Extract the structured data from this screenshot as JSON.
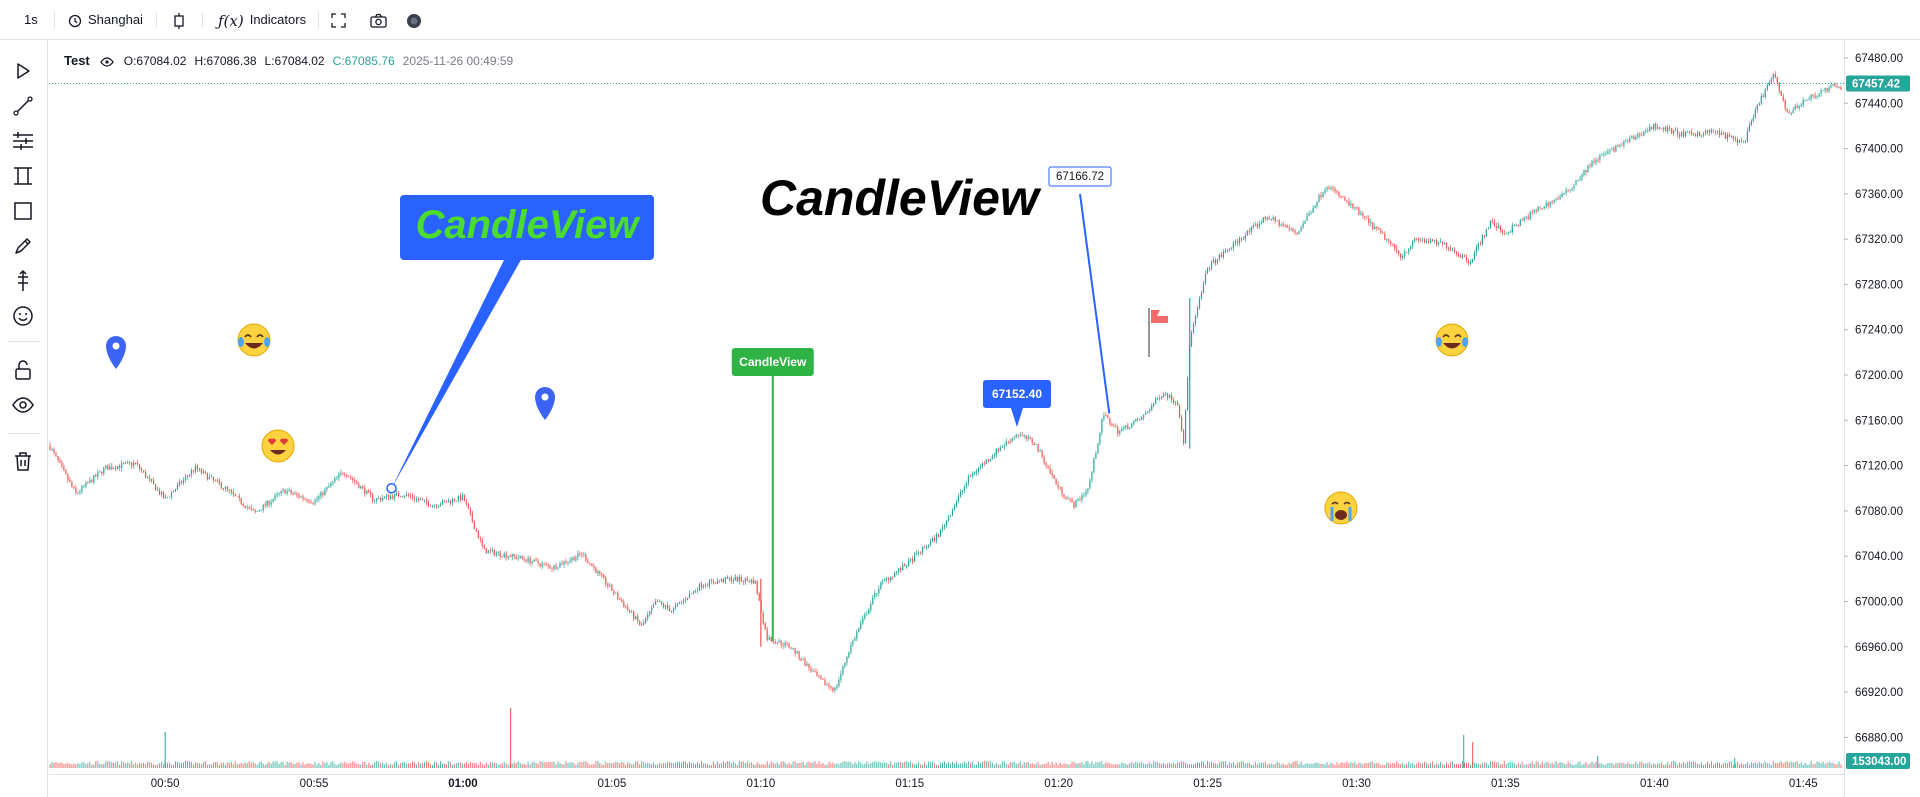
{
  "toolbar": {
    "interval": "1s",
    "timezone": "Shanghai",
    "indicators_label": "Indicators"
  },
  "legend": {
    "symbol": "Test",
    "open": "O:67084.02",
    "high": "H:67086.38",
    "low": "L:67084.02",
    "close": "C:67085.76",
    "datetime": "2025-11-26 00:49:59"
  },
  "colors": {
    "up": "#26a69a",
    "down": "#ef5350",
    "accent_blue": "#2962ff",
    "green": "#2fb344",
    "price_badge": "#26a69a"
  },
  "chart_data": {
    "type": "candlestick",
    "y_ticks": [
      "67480.00",
      "67440.00",
      "67400.00",
      "67360.00",
      "67320.00",
      "67280.00",
      "67240.00",
      "67200.00",
      "67160.00",
      "67120.00",
      "67080.00",
      "67040.00",
      "67000.00",
      "66960.00",
      "66920.00",
      "66880.00"
    ],
    "y_range": [
      66860,
      67495
    ],
    "x_ticks": [
      {
        "label": "00:50",
        "min": 50
      },
      {
        "label": "00:55",
        "min": 55
      },
      {
        "label": "01:00",
        "min": 60,
        "bold": true
      },
      {
        "label": "01:05",
        "min": 65
      },
      {
        "label": "01:10",
        "min": 70
      },
      {
        "label": "01:15",
        "min": 75
      },
      {
        "label": "01:20",
        "min": 80
      },
      {
        "label": "01:25",
        "min": 85
      },
      {
        "label": "01:30",
        "min": 90
      },
      {
        "label": "01:35",
        "min": 95
      },
      {
        "label": "01:40",
        "min": 100
      },
      {
        "label": "01:45",
        "min": 105
      }
    ],
    "x_range_minutes": [
      46.1,
      106.3
    ],
    "current_price": "67457.42",
    "current_price_value": 67457.42,
    "volume_label": "153043.00",
    "path_points": [
      [
        46.1,
        67138
      ],
      [
        47.0,
        67095
      ],
      [
        48.0,
        67118
      ],
      [
        49.0,
        67122
      ],
      [
        50.0,
        67090
      ],
      [
        51.0,
        67118
      ],
      [
        52.0,
        67100
      ],
      [
        53.0,
        67078
      ],
      [
        54.0,
        67098
      ],
      [
        55.0,
        67088
      ],
      [
        56.0,
        67115
      ],
      [
        57.0,
        67090
      ],
      [
        58.0,
        67095
      ],
      [
        59.0,
        67085
      ],
      [
        60.0,
        67092
      ],
      [
        60.7,
        67045
      ],
      [
        62.0,
        67038
      ],
      [
        63.0,
        67030
      ],
      [
        64.0,
        67042
      ],
      [
        65.0,
        67010
      ],
      [
        66.0,
        66978
      ],
      [
        66.5,
        67000
      ],
      [
        67.0,
        66992
      ],
      [
        68.0,
        67015
      ],
      [
        69.0,
        67020
      ],
      [
        69.8,
        67018
      ],
      [
        70.2,
        66968
      ],
      [
        71.0,
        66960
      ],
      [
        72.0,
        66930
      ],
      [
        72.5,
        66922
      ],
      [
        73.0,
        66960
      ],
      [
        74.0,
        67015
      ],
      [
        75.0,
        67035
      ],
      [
        76.0,
        67060
      ],
      [
        77.0,
        67110
      ],
      [
        78.0,
        67135
      ],
      [
        78.6,
        67148
      ],
      [
        79.2,
        67140
      ],
      [
        80.0,
        67100
      ],
      [
        80.5,
        67085
      ],
      [
        81.0,
        67100
      ],
      [
        81.5,
        67165
      ],
      [
        82.0,
        67150
      ],
      [
        82.8,
        67162
      ],
      [
        83.5,
        67185
      ],
      [
        84.0,
        67175
      ],
      [
        84.2,
        67140
      ],
      [
        84.4,
        67230
      ],
      [
        85.0,
        67295
      ],
      [
        86.0,
        67318
      ],
      [
        87.0,
        67340
      ],
      [
        88.0,
        67325
      ],
      [
        89.0,
        67368
      ],
      [
        90.0,
        67345
      ],
      [
        91.0,
        67320
      ],
      [
        91.5,
        67305
      ],
      [
        92.0,
        67320
      ],
      [
        93.0,
        67315
      ],
      [
        93.8,
        67300
      ],
      [
        94.5,
        67335
      ],
      [
        95.0,
        67325
      ],
      [
        96.0,
        67345
      ],
      [
        97.0,
        67360
      ],
      [
        98.0,
        67390
      ],
      [
        99.0,
        67405
      ],
      [
        100.0,
        67420
      ],
      [
        101.0,
        67412
      ],
      [
        102.0,
        67415
      ],
      [
        103.0,
        67405
      ],
      [
        103.5,
        67440
      ],
      [
        104.0,
        67465
      ],
      [
        104.5,
        67430
      ],
      [
        105.0,
        67442
      ],
      [
        106.0,
        67455
      ],
      [
        106.3,
        67452
      ]
    ],
    "spikes": [
      {
        "min": 70.0,
        "high": 67020,
        "low": 66960
      },
      {
        "min": 84.4,
        "high": 67268,
        "low": 67135
      }
    ],
    "volume_spikes": [
      {
        "min": 50.0,
        "h": 36,
        "up": true
      },
      {
        "min": 61.6,
        "h": 60,
        "up": false
      },
      {
        "min": 93.6,
        "h": 33,
        "up": true
      },
      {
        "min": 93.9,
        "h": 26,
        "up": false
      },
      {
        "min": 98.1,
        "h": 12,
        "up": true
      },
      {
        "min": 102.7,
        "h": 10,
        "up": true
      }
    ],
    "annotations": {
      "callout_text": "CandleView",
      "big_text": "CandleView",
      "green_label": "CandleView",
      "price_label": "67152.40",
      "price_note": "67166.72"
    }
  }
}
